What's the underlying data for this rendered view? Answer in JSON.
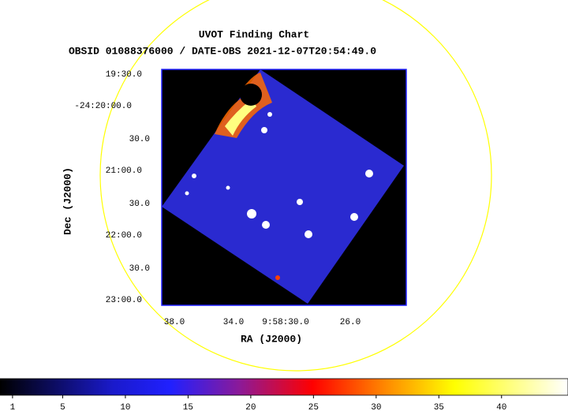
{
  "chart_data": {
    "type": "image",
    "title": "UVOT Finding Chart",
    "subtitle": "OBSID 01088376000 / DATE-OBS 2021-12-07T20:54:49.0",
    "xlabel": "RA (J2000)",
    "ylabel": "Dec (J2000)",
    "x_tick_labels": [
      "38.0",
      "34.0",
      "9:58:30.0",
      "26.0"
    ],
    "y_tick_labels": [
      "19:30.0",
      "-24:20:00.0",
      "30.0",
      "21:00.0",
      "30.0",
      "22:00.0",
      "30.0",
      "23:00.0"
    ],
    "colorbar": {
      "lim": [
        0,
        45.3
      ],
      "ticks": [
        1,
        5,
        10,
        15,
        20,
        25,
        30,
        35,
        40
      ]
    }
  }
}
